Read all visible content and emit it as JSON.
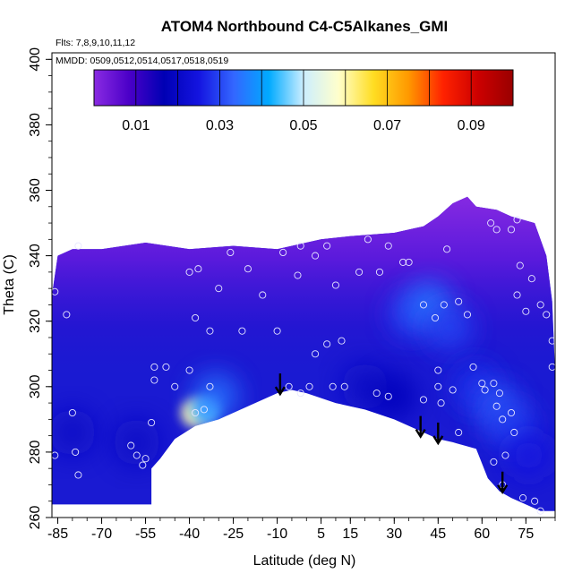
{
  "chart_data": {
    "type": "heatmap",
    "title": "ATOM4 Northbound C4-C5Alkanes_GMI",
    "flights_label": "Flts: 7,8,9,10,11,12",
    "mmdd_label": "MMDD: 0509,0512,0514,0517,0518,0519",
    "xlabel": "Latitude (deg N)",
    "ylabel": "Theta (C)",
    "xlim": [
      -87,
      85
    ],
    "ylim": [
      260,
      402
    ],
    "x_ticks": [
      "-85",
      "-70",
      "-55",
      "-40",
      "-25",
      "-10",
      "5",
      "15",
      "30",
      "45",
      "60",
      "75"
    ],
    "x_tick_values": [
      -85,
      -70,
      -55,
      -40,
      -25,
      -10,
      5,
      15,
      30,
      45,
      60,
      75
    ],
    "y_ticks": [
      "260",
      "280",
      "300",
      "320",
      "340",
      "360",
      "380",
      "400"
    ],
    "y_tick_values": [
      260,
      280,
      300,
      320,
      340,
      360,
      380,
      400
    ],
    "colorbar": {
      "range": [
        0.0,
        0.1
      ],
      "tick_labels": [
        "0.01",
        "0.03",
        "0.05",
        "0.07",
        "0.09"
      ],
      "tick_values": [
        0.01,
        0.03,
        0.05,
        0.07,
        0.09
      ],
      "colors": [
        "#8a2be2",
        "#4b00c8",
        "#0000b4",
        "#1414e0",
        "#3366ff",
        "#00aaff",
        "#cceeff",
        "#ffffcc",
        "#ffdd22",
        "#ff9900",
        "#ff2200",
        "#cc0000",
        "#990000"
      ]
    },
    "arrows": [
      {
        "lat": -9,
        "theta": 298
      },
      {
        "lat": 39,
        "theta": 285
      },
      {
        "lat": 45,
        "theta": 283
      },
      {
        "lat": 67,
        "theta": 268
      }
    ],
    "domain_top": [
      [
        -87,
        328
      ],
      [
        -85,
        340
      ],
      [
        -80,
        342
      ],
      [
        -70,
        342
      ],
      [
        -55,
        344
      ],
      [
        -40,
        342
      ],
      [
        -25,
        343
      ],
      [
        -10,
        342
      ],
      [
        5,
        345
      ],
      [
        15,
        346
      ],
      [
        30,
        347
      ],
      [
        40,
        349
      ],
      [
        45,
        352
      ],
      [
        50,
        356
      ],
      [
        55,
        358
      ],
      [
        58,
        355
      ],
      [
        65,
        354
      ],
      [
        70,
        352
      ],
      [
        78,
        350
      ],
      [
        82,
        340
      ],
      [
        84,
        326
      ],
      [
        85,
        304
      ]
    ],
    "domain_bottom": [
      [
        85,
        262
      ],
      [
        80,
        262
      ],
      [
        75,
        264
      ],
      [
        70,
        266
      ],
      [
        66,
        268
      ],
      [
        62,
        272
      ],
      [
        58,
        281
      ],
      [
        50,
        283
      ],
      [
        45,
        284
      ],
      [
        40,
        286
      ],
      [
        30,
        290
      ],
      [
        20,
        293
      ],
      [
        10,
        295
      ],
      [
        0,
        298
      ],
      [
        -5,
        299
      ],
      [
        -10,
        298
      ],
      [
        -20,
        294
      ],
      [
        -30,
        290
      ],
      [
        -38,
        288
      ],
      [
        -45,
        284
      ],
      [
        -50,
        278
      ],
      [
        -53,
        275
      ],
      [
        -53,
        264
      ],
      [
        -87,
        264
      ]
    ],
    "plume_points": [
      {
        "lat": -38,
        "theta": 292,
        "value": 0.06
      },
      {
        "lat": -34,
        "theta": 293,
        "value": 0.045
      },
      {
        "lat": -31,
        "theta": 297,
        "value": 0.035
      },
      {
        "lat": 36,
        "theta": 322,
        "value": 0.03
      },
      {
        "lat": 42,
        "theta": 325,
        "value": 0.035
      },
      {
        "lat": 49,
        "theta": 318,
        "value": 0.03
      },
      {
        "lat": 58,
        "theta": 300,
        "value": 0.028
      },
      {
        "lat": 65,
        "theta": 294,
        "value": 0.032
      },
      {
        "lat": 70,
        "theta": 288,
        "value": 0.03
      },
      {
        "lat": 76,
        "theta": 279,
        "value": 0.025
      },
      {
        "lat": -80,
        "theta": 286,
        "value": 0.02
      },
      {
        "lat": -58,
        "theta": 283,
        "value": 0.02
      },
      {
        "lat": 20,
        "theta": 300,
        "value": 0.02
      },
      {
        "lat": 30,
        "theta": 297,
        "value": 0.018
      }
    ],
    "sample_points": [
      [
        -86,
        329
      ],
      [
        -82,
        322
      ],
      [
        -78,
        343
      ],
      [
        -80,
        292
      ],
      [
        -79,
        280
      ],
      [
        -78,
        273
      ],
      [
        -86,
        279
      ],
      [
        -60,
        282
      ],
      [
        -58,
        279
      ],
      [
        -56,
        276
      ],
      [
        -55,
        278
      ],
      [
        -53,
        289
      ],
      [
        -52,
        302
      ],
      [
        -52,
        306
      ],
      [
        -48,
        306
      ],
      [
        -45,
        300
      ],
      [
        -40,
        305
      ],
      [
        -38,
        292
      ],
      [
        -35,
        293
      ],
      [
        -33,
        300
      ],
      [
        -33,
        317
      ],
      [
        -38,
        321
      ],
      [
        -40,
        335
      ],
      [
        -37,
        336
      ],
      [
        -30,
        330
      ],
      [
        -26,
        341
      ],
      [
        -22,
        317
      ],
      [
        -20,
        336
      ],
      [
        -15,
        328
      ],
      [
        -10,
        317
      ],
      [
        -8,
        341
      ],
      [
        -3,
        334
      ],
      [
        -2,
        343
      ],
      [
        3,
        340
      ],
      [
        7,
        343
      ],
      [
        10,
        331
      ],
      [
        12,
        314
      ],
      [
        18,
        335
      ],
      [
        21,
        345
      ],
      [
        25,
        335
      ],
      [
        28,
        343
      ],
      [
        33,
        338
      ],
      [
        35,
        338
      ],
      [
        28,
        297
      ],
      [
        24,
        298
      ],
      [
        13,
        300
      ],
      [
        9,
        300
      ],
      [
        7,
        313
      ],
      [
        3,
        310
      ],
      [
        1,
        300
      ],
      [
        -6,
        300
      ],
      [
        -2,
        298
      ],
      [
        40,
        296
      ],
      [
        45,
        305
      ],
      [
        45,
        300
      ],
      [
        46,
        295
      ],
      [
        50,
        299
      ],
      [
        52,
        286
      ],
      [
        55,
        322
      ],
      [
        57,
        306
      ],
      [
        60,
        301
      ],
      [
        61,
        299
      ],
      [
        64,
        301
      ],
      [
        65,
        294
      ],
      [
        66,
        298
      ],
      [
        67,
        290
      ],
      [
        70,
        292
      ],
      [
        71,
        286
      ],
      [
        68,
        279
      ],
      [
        64,
        277
      ],
      [
        67,
        270
      ],
      [
        74,
        266
      ],
      [
        78,
        265
      ],
      [
        80,
        262
      ],
      [
        75,
        323
      ],
      [
        72,
        328
      ],
      [
        73,
        337
      ],
      [
        77,
        333
      ],
      [
        80,
        325
      ],
      [
        82,
        322
      ],
      [
        84,
        314
      ],
      [
        84,
        306
      ],
      [
        63,
        350
      ],
      [
        65,
        348
      ],
      [
        70,
        348
      ],
      [
        72,
        351
      ],
      [
        48,
        342
      ],
      [
        47,
        325
      ],
      [
        52,
        326
      ],
      [
        40,
        325
      ],
      [
        44,
        321
      ]
    ]
  }
}
